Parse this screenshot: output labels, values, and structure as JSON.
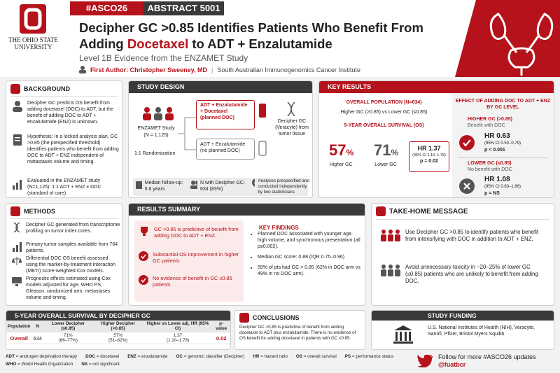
{
  "header": {
    "tags": [
      "#ASCO26",
      "ABSTRACT 5001"
    ],
    "university": [
      "THE OHIO STATE",
      "UNIVERSITY"
    ],
    "title": {
      "line1": "Decipher GC >0.85 Identifies Patients Who Benefit From",
      "line2_pre": "Adding ",
      "highlight": "Docetaxel",
      "line2_post": " to ADT + Enzalutamide"
    },
    "subtitle": "Level 1B Evidence from the ENZAMET Study",
    "author": "First Author: Christopher Sweeney, MD",
    "separator": "|",
    "institute": "South Australian Immunogenomics Cancer Institute"
  },
  "background": {
    "heading": "BACKGROUND",
    "items": [
      "Decipher GC predicts OS benefit from adding docetaxel (DOC) to ADT, but the benefit of adding DOC to ADT + enzalutamide (ENZ) is unknown.",
      "Hypothesis: In a locked analysis plan, GC >0.85 (the prespecified threshold) identifies patients who benefit from adding DOC to ADT + ENZ independent of metastases volume and timing.",
      "Evaluated in the ENZAMET study (N=1,125): 1:1 ADT + ENZ ± DOC (standard of care)."
    ]
  },
  "study_design": {
    "heading": "STUDY DESIGN",
    "study": "ENZAMET Study",
    "n": "(N = 1,125)",
    "randomization": "1:1 Randomization",
    "arm1": [
      "ADT + Enzalutamide",
      "+ Docetaxel",
      "(planned DOC)"
    ],
    "arm2": [
      "ADT + Enzalutamide",
      "(no planned DOC)"
    ],
    "decipher": "Decipher GC (Veracyte) from tumor tissue",
    "footer": [
      "Median follow-up: 5.6 years",
      "N with Decipher GC: 634 (83%)",
      "Analyses prespecified and conducted independently by two statisticians"
    ]
  },
  "key_results": {
    "heading": "KEY RESULTS",
    "population": "OVERALL POPULATION (N=634)",
    "comparison": "Higher GC (>0.85) vs Lower GC (≤0.85)",
    "os_heading": "5-YEAR OVERALL SURVIVAL (OS)",
    "higher": {
      "value": "57",
      "unit": "%",
      "label": "Higher GC"
    },
    "lower": {
      "value": "71",
      "unit": "%",
      "label": "Lower GC"
    },
    "hr": {
      "hr": "HR 1.37",
      "ci": "(95% CI 1.10–1.78)",
      "p": "p = 0.02"
    },
    "effect_heading": "EFFECT OF ADDING DOC TO ADT + ENZ BY GC LEVEL",
    "groups": [
      {
        "name": "HIGHER GC (>0.85)",
        "note": "Benefit with DOC",
        "hr": "HR 0.63",
        "ci": "(95% CI 0.50–0.79)",
        "p": "p < 0.001"
      },
      {
        "name": "LOWER GC (≤0.85)",
        "note": "No benefit with DOC",
        "hr": "HR 1.08",
        "ci": "(95% CI 0.63–1.86)",
        "p": "p = NS"
      }
    ]
  },
  "methods": {
    "heading": "METHODS",
    "items": [
      "Decipher GC generated from transcriptome profiling on tumor index cores.",
      "Primary tumor samples available from 764 patients.",
      "Differential DOC OS benefit assessed using the marker-by-treatment interaction (MBTI) score-weighted Cox models.",
      "Prognostic effects estimated using Cox models adjusted for age, WHO PS, Gleason, randomized arm, metastases volume and timing."
    ]
  },
  "results_summary": {
    "heading": "RESULTS SUMMARY",
    "highlights": [
      "GC >0.85 is predictive of benefit from adding DOC to ADT + ENZ.",
      "Substantial OS improvement in higher GC patients",
      "No evidence of benefit in GC ≤0.85 patients"
    ],
    "findings_heading": "KEY FINDINGS",
    "findings": [
      "Planned DOC associated with younger age, high volume, and synchronous presentation (all p≤0.002).",
      "Median GC score: 0.88 (IQR 0.75–0.96)",
      "55% of pts had GC > 0.85 (62% in DOC arm vs 49% in no DOC arm)."
    ]
  },
  "take_home": {
    "heading": "TAKE-HOME MESSAGE",
    "items": [
      "Use Decipher GC >0.85 to identify patients who benefit from intensifying with DOC in addition to ADT + ENZ.",
      "Avoid unnecessary toxicity in ~20–25% of lower GC (≤0.85) patients who are unlikely to benefit from adding DOC."
    ]
  },
  "table": {
    "title": "5-YEAR OVERALL SURVIVAL BY DECIPHER GC",
    "header": [
      "Population",
      "N",
      "Lower Decipher (≤0.85)",
      "Higher Decipher (>0.85)",
      "Higher vs Lower adj. HR (95% CI)",
      "p-value"
    ],
    "rows": [
      [
        [
          "Overall"
        ],
        [
          "634"
        ],
        [
          "71%",
          "(66–77%)"
        ],
        [
          "57%",
          "(51–62%)"
        ],
        [
          "1.37",
          "(1.10–1.78)"
        ],
        [
          "0.02"
        ]
      ]
    ]
  },
  "conclusions": {
    "heading": "CONCLUSIONS",
    "text": "Decipher GC >0.85 is predictive of benefit from adding docetaxel to ADT plus enzalutamide. There is no evidence of OS benefit for adding docetaxel in patients with GC ≤0.85."
  },
  "funding": {
    "heading": "STUDY FUNDING",
    "text": "U.S. National Institutes of Health (NIH), Veracyte, Sanofi, Pfizer, Bristol Myers Squibb"
  },
  "footer": {
    "abbreviations": [
      {
        "abbr": "ADT",
        "definition": "= androgen deprivation therapy"
      },
      {
        "abbr": "DOC",
        "definition": "= docetaxel"
      },
      {
        "abbr": "ENZ",
        "definition": "= enzalutamide"
      },
      {
        "abbr": "GC",
        "definition": "= genomic classifier (Decipher)"
      },
      {
        "abbr": "HR",
        "definition": "= hazard ratio"
      },
      {
        "abbr": "OS",
        "definition": "= overall survival"
      },
      {
        "abbr": "PS",
        "definition": "= performance status"
      },
      {
        "abbr": "WHO",
        "definition": "= World Health Organization"
      },
      {
        "abbr": "NS",
        "definition": "= not significant"
      }
    ],
    "follow": "Follow for more #ASCO26 updates",
    "handle": "@fuatbcr"
  }
}
